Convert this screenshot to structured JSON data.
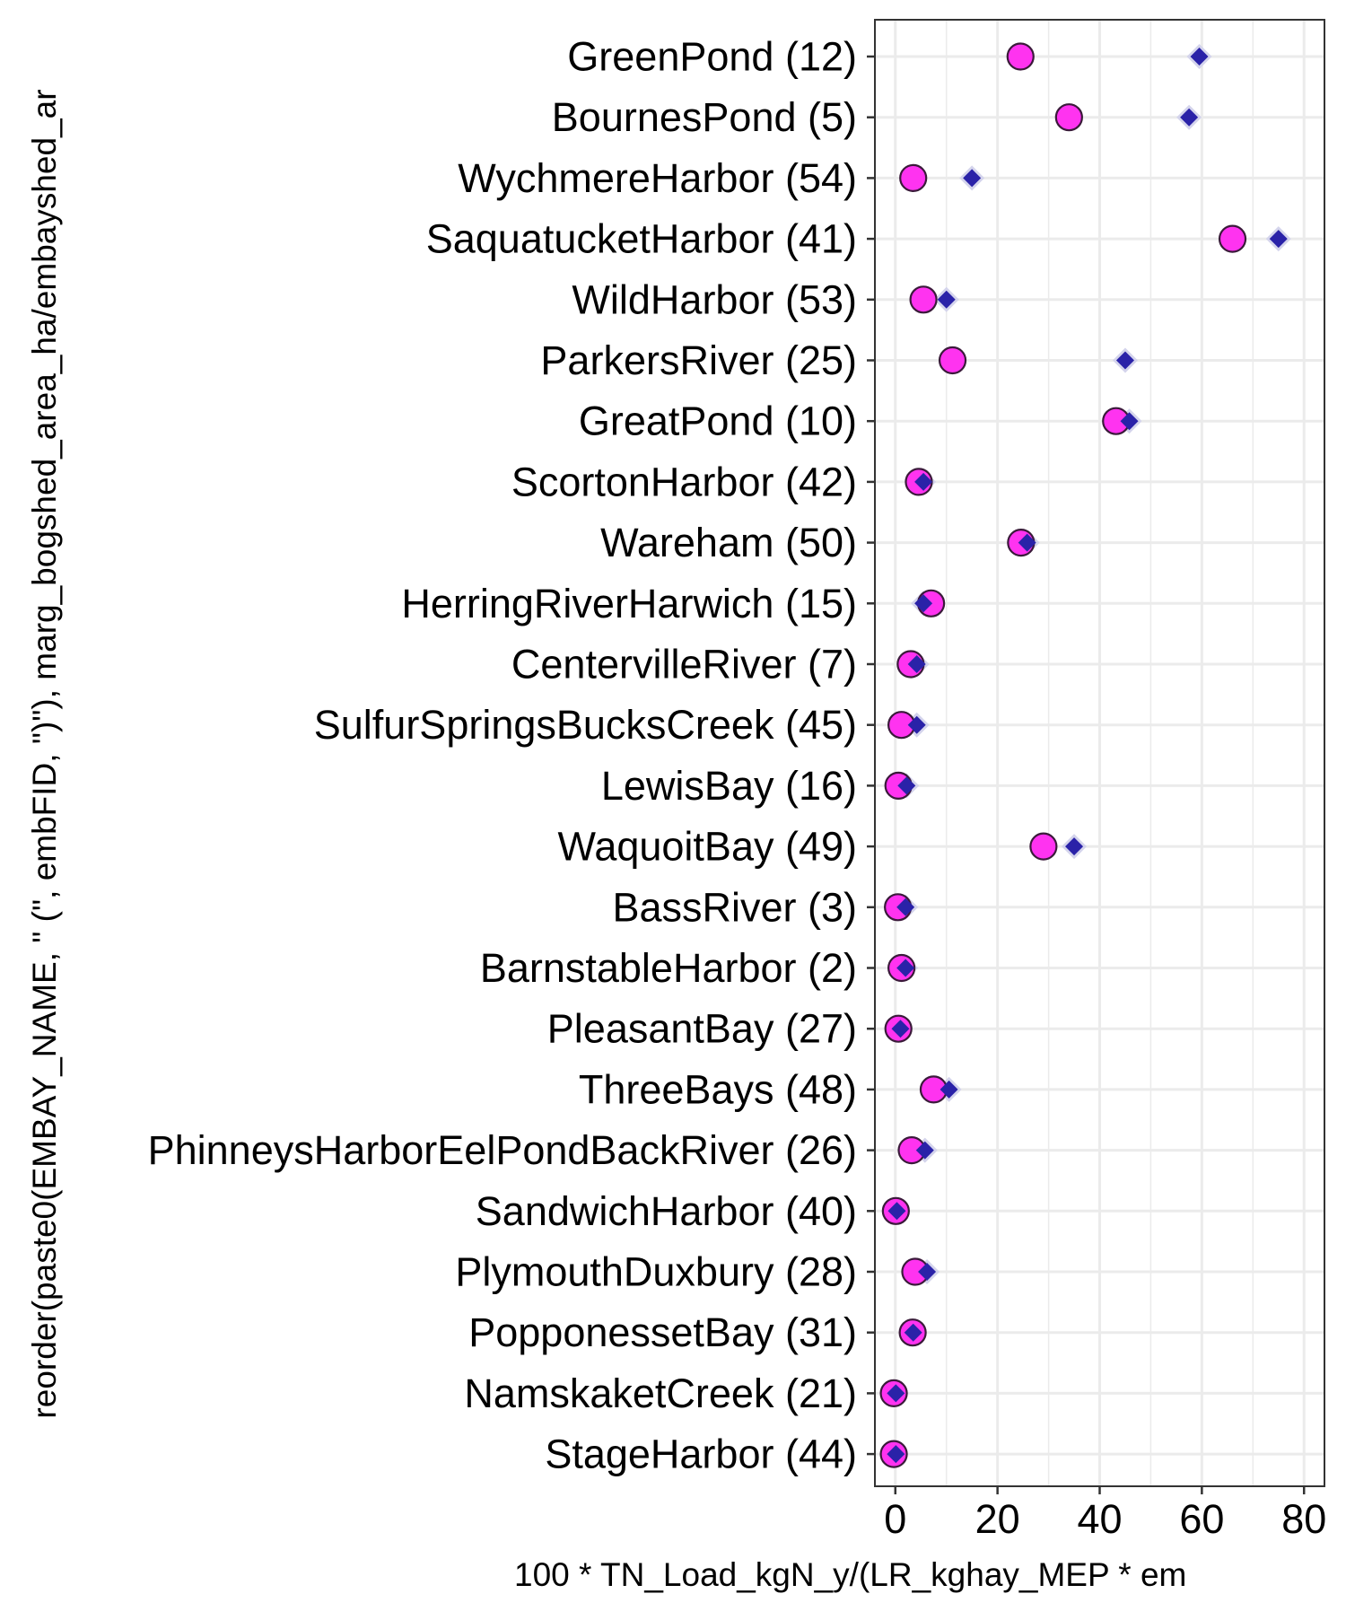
{
  "chart_data": {
    "type": "scatter",
    "xlabel": "100 * TN_Load_kgN_y/(LR_kghay_MEP * em",
    "ylabel": "reorder(paste0(EMBAY_NAME, \" (\", embFID, \")\"), marg_bogshed_area_ha/embayshed_ar",
    "xlim": [
      -4,
      84
    ],
    "xticks": [
      0,
      20,
      40,
      60,
      80
    ],
    "grid": true,
    "legend": "none",
    "colors": {
      "circle_fill": "#ff33f0",
      "circle_stroke": "#3a1a3a",
      "diamond_fill": "#2a22a8",
      "diamond_halo": "#d4d4ec",
      "gridline": "#ebebeb",
      "panel_border": "#333333"
    },
    "categories": [
      "GreenPond (12)",
      "BournesPond (5)",
      "WychmereHarbor (54)",
      "SaquatucketHarbor (41)",
      "WildHarbor (53)",
      "ParkersRiver (25)",
      "GreatPond (10)",
      "ScortonHarbor (42)",
      "Wareham (50)",
      "HerringRiverHarwich (15)",
      "CentervilleRiver (7)",
      "SulfurSpringsBucksCreek (45)",
      "LewisBay (16)",
      "WaquoitBay (49)",
      "BassRiver (3)",
      "BarnstableHarbor (2)",
      "PleasantBay (27)",
      "ThreeBays (48)",
      "PhinneysHarborEelPondBackRiver (26)",
      "SandwichHarbor (40)",
      "PlymouthDuxbury (28)",
      "PopponessetBay (31)",
      "NamskaketCreek (21)",
      "StageHarbor (44)"
    ],
    "series": [
      {
        "marker": "circle",
        "values": [
          24.5,
          34,
          3.5,
          66,
          5.5,
          11.2,
          43.2,
          4.6,
          24.6,
          7.0,
          3.0,
          1.2,
          0.6,
          29,
          0.5,
          1.2,
          0.6,
          7.5,
          3.2,
          0.1,
          3.9,
          3.4,
          -0.3,
          -0.3
        ]
      },
      {
        "marker": "diamond",
        "values": [
          59.5,
          57.5,
          15,
          75,
          10,
          45,
          45.8,
          5.5,
          25.8,
          5.5,
          4.2,
          4.2,
          2.2,
          35,
          2.0,
          2.0,
          1.0,
          10.5,
          5.8,
          0.3,
          6.2,
          3.5,
          0.1,
          0.1
        ]
      }
    ]
  }
}
